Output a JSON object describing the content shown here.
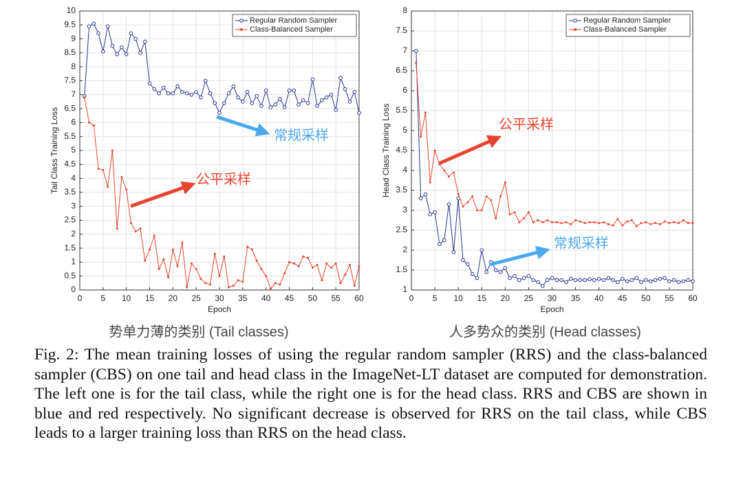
{
  "chart_data": [
    {
      "type": "line",
      "subtitle": "势单力薄的类别 (Tail classes)",
      "xlabel": "Epoch",
      "ylabel": "Tail Class Training Loss",
      "x": [
        1,
        2,
        3,
        4,
        5,
        6,
        7,
        8,
        9,
        10,
        11,
        12,
        13,
        14,
        15,
        16,
        17,
        18,
        19,
        20,
        21,
        22,
        23,
        24,
        25,
        26,
        27,
        28,
        29,
        30,
        31,
        32,
        33,
        34,
        35,
        36,
        37,
        38,
        39,
        40,
        41,
        42,
        43,
        44,
        45,
        46,
        47,
        48,
        49,
        50,
        51,
        52,
        53,
        54,
        55,
        56,
        57,
        58,
        59,
        60
      ],
      "xlim": [
        0,
        60
      ],
      "xticks": [
        0,
        5,
        10,
        15,
        20,
        25,
        30,
        35,
        40,
        45,
        50,
        55,
        60
      ],
      "ylim": [
        0,
        10
      ],
      "yticks": [
        0,
        0.5,
        1,
        1.5,
        2,
        2.5,
        3,
        3.5,
        4,
        4.5,
        5,
        5.5,
        6,
        6.5,
        7,
        7.5,
        8,
        8.5,
        9,
        9.5,
        10
      ],
      "grid": true,
      "legend": "top-right",
      "series": [
        {
          "name": "Regular Random Sampler",
          "color": "#26338f",
          "values": [
            6.95,
            9.45,
            9.55,
            9.2,
            8.55,
            9.45,
            8.75,
            8.45,
            8.7,
            8.45,
            9.2,
            9.0,
            8.5,
            8.9,
            7.4,
            7.2,
            7.05,
            7.25,
            7.05,
            7.05,
            7.3,
            7.1,
            7.05,
            7.0,
            7.1,
            6.9,
            7.5,
            7.05,
            6.7,
            6.35,
            6.7,
            7.05,
            7.3,
            6.9,
            6.75,
            7.1,
            6.7,
            6.95,
            6.6,
            7.15,
            6.55,
            6.65,
            6.85,
            6.55,
            7.15,
            7.15,
            6.65,
            6.8,
            6.7,
            7.55,
            6.6,
            6.8,
            6.9,
            7.0,
            6.45,
            7.6,
            7.2,
            6.75,
            7.1,
            6.35
          ]
        },
        {
          "name": "Class-Balanced Sampler",
          "color": "#e8432e",
          "values": [
            6.9,
            6.0,
            5.9,
            4.35,
            4.3,
            3.7,
            5.0,
            2.2,
            4.05,
            3.6,
            2.4,
            2.1,
            2.2,
            1.05,
            1.45,
            1.95,
            0.75,
            1.1,
            0.45,
            1.45,
            0.85,
            1.7,
            0.1,
            0.95,
            0.75,
            0.4,
            0.25,
            0.2,
            1.3,
            0.5,
            1.2,
            0.1,
            0.15,
            0.35,
            0.3,
            1.55,
            1.45,
            1.05,
            0.75,
            0.5,
            0.05,
            0.25,
            0.2,
            0.6,
            1.0,
            0.95,
            0.85,
            1.2,
            1.15,
            0.8,
            0.9,
            0.35,
            0.95,
            0.8,
            0.95,
            0.25,
            0.55,
            0.9,
            0.15,
            0.85
          ]
        }
      ],
      "annotations": [
        {
          "text": "常规采样",
          "color": "#4aa8ee"
        },
        {
          "text": "公平采样",
          "color": "#e8432e"
        }
      ]
    },
    {
      "type": "line",
      "subtitle": "人多势众的类别 (Head classes)",
      "xlabel": "Epoch",
      "ylabel": "Head Class Training Loss",
      "x": [
        1,
        2,
        3,
        4,
        5,
        6,
        7,
        8,
        9,
        10,
        11,
        12,
        13,
        14,
        15,
        16,
        17,
        18,
        19,
        20,
        21,
        22,
        23,
        24,
        25,
        26,
        27,
        28,
        29,
        30,
        31,
        32,
        33,
        34,
        35,
        36,
        37,
        38,
        39,
        40,
        41,
        42,
        43,
        44,
        45,
        46,
        47,
        48,
        49,
        50,
        51,
        52,
        53,
        54,
        55,
        56,
        57,
        58,
        59,
        60
      ],
      "xlim": [
        0,
        60
      ],
      "xticks": [
        0,
        5,
        10,
        15,
        20,
        25,
        30,
        35,
        40,
        45,
        50,
        55,
        60
      ],
      "ylim": [
        1,
        8
      ],
      "yticks": [
        1,
        1.5,
        2,
        2.5,
        3,
        3.5,
        4,
        4.5,
        5,
        5.5,
        6,
        6.5,
        7,
        7.5,
        8
      ],
      "grid": true,
      "legend": "top-right",
      "series": [
        {
          "name": "Regular Random Sampler",
          "color": "#26338f",
          "values": [
            7.0,
            3.3,
            3.4,
            2.9,
            2.95,
            2.15,
            2.25,
            3.15,
            1.95,
            3.3,
            1.75,
            1.65,
            1.4,
            1.3,
            2.0,
            1.45,
            1.7,
            1.5,
            1.45,
            1.55,
            1.3,
            1.35,
            1.25,
            1.3,
            1.35,
            1.25,
            1.2,
            1.1,
            1.25,
            1.3,
            1.25,
            1.25,
            1.2,
            1.28,
            1.25,
            1.25,
            1.25,
            1.27,
            1.25,
            1.28,
            1.25,
            1.3,
            1.25,
            1.2,
            1.28,
            1.22,
            1.25,
            1.3,
            1.2,
            1.25,
            1.22,
            1.25,
            1.28,
            1.3,
            1.22,
            1.25,
            1.2,
            1.22,
            1.25,
            1.22
          ]
        },
        {
          "name": "Class-Balanced Sampler",
          "color": "#e8432e",
          "values": [
            6.7,
            4.85,
            5.45,
            3.7,
            4.5,
            4.15,
            4.0,
            3.85,
            3.95,
            3.4,
            3.1,
            3.2,
            3.35,
            3.0,
            3.0,
            3.35,
            3.25,
            2.8,
            3.35,
            3.7,
            2.9,
            2.95,
            2.7,
            2.8,
            2.95,
            2.7,
            2.75,
            2.7,
            2.75,
            2.7,
            2.7,
            2.68,
            2.7,
            2.65,
            2.75,
            2.72,
            2.68,
            2.7,
            2.7,
            2.68,
            2.7,
            2.65,
            2.62,
            2.78,
            2.62,
            2.72,
            2.75,
            2.6,
            2.68,
            2.7,
            2.65,
            2.68,
            2.65,
            2.72,
            2.68,
            2.7,
            2.68,
            2.75,
            2.68,
            2.68
          ]
        }
      ],
      "annotations": [
        {
          "text": "公平采样",
          "color": "#e8432e"
        },
        {
          "text": "常规采样",
          "color": "#4aa8ee"
        }
      ]
    }
  ],
  "caption": "Fig. 2: The mean training losses of using the regular random sampler (RRS) and the class-balanced sampler (CBS) on one tail and head class in the ImageNet-LT dataset are computed for demonstration. The left one is for the tail class, while the right one is for the head class. RRS and CBS are shown in blue and red respectively. No significant decrease is observed for RRS on the tail class, while CBS leads to a larger training loss than RRS on the head class."
}
